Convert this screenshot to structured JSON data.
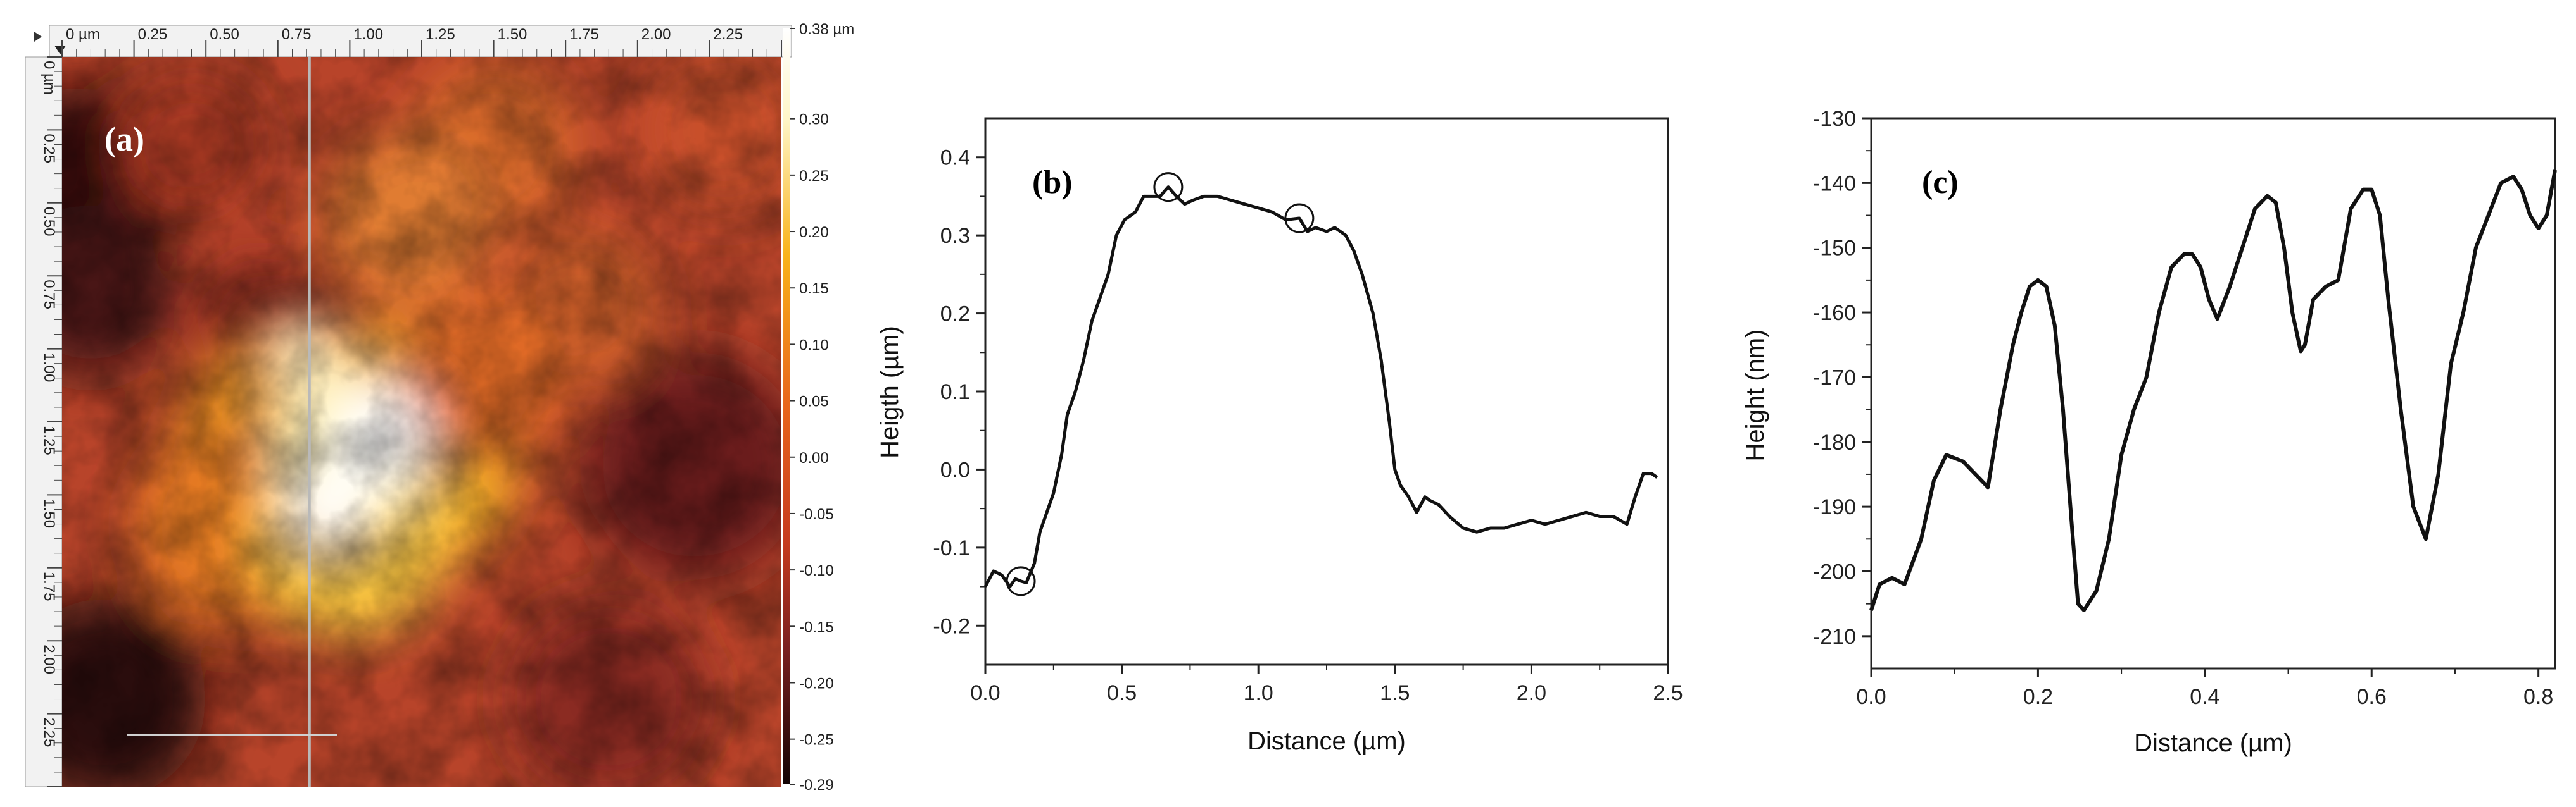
{
  "colors": {
    "curve": "#111111",
    "axis": "#222222",
    "ruler_bg": "#f2f2f2",
    "afm_low": "#1a0505",
    "afm_mid": "#d0401c",
    "afm_high": "#ffffff"
  },
  "chart_data": [
    {
      "type": "heatmap",
      "panel_label": "(a)",
      "x_tick_labels": [
        "0 µm",
        "0.25",
        "0.50",
        "0.75",
        "1.00",
        "1.25",
        "1.50",
        "1.75",
        "2.00",
        "2.25"
      ],
      "y_tick_labels": [
        "0 µm",
        "0.25",
        "0.50",
        "0.75",
        "1.00",
        "1.25",
        "1.50",
        "1.75",
        "2.00",
        "2.25"
      ],
      "colorbar_labels": [
        "0.38 µm",
        "0.30",
        "0.25",
        "0.20",
        "0.15",
        "0.10",
        "0.05",
        "0.00",
        "-0.05",
        "-0.10",
        "-0.15",
        "-0.20",
        "-0.25",
        "-0.29"
      ],
      "colorbar_range": [
        -0.29,
        0.38
      ],
      "colormap": "afm-hot",
      "profile_line_x": 0.86,
      "scale_bar_label": "",
      "features": [
        {
          "name": "bright-grain",
          "x": 1.05,
          "y": 1.4,
          "h": 0.38
        },
        {
          "name": "bright-grain-2",
          "x": 0.85,
          "y": 1.3,
          "h": 0.34
        },
        {
          "name": "grain-top",
          "x": 1.15,
          "y": 0.5,
          "h": 0.1
        },
        {
          "name": "grain-right",
          "x": 1.85,
          "y": 0.8,
          "h": 0.05
        }
      ]
    },
    {
      "type": "line",
      "panel_label": "(b)",
      "xlabel": "Distance (µm)",
      "ylabel": "Heigth (µm)",
      "xlim": [
        0,
        2.5
      ],
      "ylim": [
        -0.25,
        0.45
      ],
      "xticks": [
        0.0,
        0.5,
        1.0,
        1.5,
        2.0,
        2.5
      ],
      "xtick_labels": [
        "0.0",
        "0.5",
        "1.0",
        "1.5",
        "2.0",
        "2.5"
      ],
      "yticks": [
        -0.2,
        -0.1,
        0.0,
        0.1,
        0.2,
        0.3,
        0.4
      ],
      "ytick_labels": [
        "-0.2",
        "-0.1",
        "0.0",
        "0.1",
        "0.2",
        "0.3",
        "0.4"
      ],
      "markers": [
        {
          "x": 0.13,
          "y": -0.143
        },
        {
          "x": 0.67,
          "y": 0.362
        },
        {
          "x": 1.15,
          "y": 0.322
        }
      ],
      "x": [
        0.0,
        0.03,
        0.06,
        0.09,
        0.11,
        0.13,
        0.15,
        0.18,
        0.2,
        0.22,
        0.25,
        0.28,
        0.3,
        0.33,
        0.36,
        0.39,
        0.42,
        0.45,
        0.48,
        0.51,
        0.55,
        0.58,
        0.61,
        0.64,
        0.67,
        0.7,
        0.73,
        0.76,
        0.8,
        0.85,
        0.9,
        0.95,
        1.0,
        1.05,
        1.1,
        1.15,
        1.18,
        1.21,
        1.25,
        1.28,
        1.32,
        1.35,
        1.38,
        1.42,
        1.45,
        1.48,
        1.5,
        1.52,
        1.55,
        1.58,
        1.61,
        1.63,
        1.66,
        1.7,
        1.75,
        1.8,
        1.85,
        1.9,
        1.95,
        2.0,
        2.05,
        2.1,
        2.15,
        2.2,
        2.25,
        2.3,
        2.35,
        2.38,
        2.41,
        2.44,
        2.46
      ],
      "y": [
        -0.15,
        -0.13,
        -0.135,
        -0.15,
        -0.14,
        -0.143,
        -0.145,
        -0.12,
        -0.08,
        -0.06,
        -0.03,
        0.02,
        0.07,
        0.1,
        0.14,
        0.19,
        0.22,
        0.25,
        0.3,
        0.32,
        0.33,
        0.35,
        0.35,
        0.35,
        0.362,
        0.35,
        0.34,
        0.345,
        0.35,
        0.35,
        0.345,
        0.34,
        0.335,
        0.33,
        0.32,
        0.322,
        0.305,
        0.31,
        0.305,
        0.31,
        0.3,
        0.28,
        0.25,
        0.2,
        0.14,
        0.06,
        0.0,
        -0.02,
        -0.035,
        -0.055,
        -0.035,
        -0.04,
        -0.045,
        -0.06,
        -0.075,
        -0.08,
        -0.075,
        -0.075,
        -0.07,
        -0.065,
        -0.07,
        -0.065,
        -0.06,
        -0.055,
        -0.06,
        -0.06,
        -0.07,
        -0.035,
        -0.005,
        -0.005,
        -0.01
      ]
    },
    {
      "type": "line",
      "panel_label": "(c)",
      "xlabel": "Distance (µm)",
      "ylabel": "Height (nm)",
      "xlim": [
        0,
        0.82
      ],
      "ylim": [
        -215,
        -130
      ],
      "xticks": [
        0.0,
        0.2,
        0.4,
        0.6,
        0.8
      ],
      "xtick_labels": [
        "0.0",
        "0.2",
        "0.4",
        "0.6",
        "0.8"
      ],
      "yticks": [
        -210,
        -200,
        -190,
        -180,
        -170,
        -160,
        -150,
        -140,
        -130
      ],
      "ytick_labels": [
        "-210",
        "-200",
        "-190",
        "-180",
        "-170",
        "-160",
        "-150",
        "-140",
        "-130"
      ],
      "x": [
        0.0,
        0.01,
        0.025,
        0.04,
        0.06,
        0.075,
        0.09,
        0.11,
        0.125,
        0.14,
        0.155,
        0.17,
        0.18,
        0.19,
        0.2,
        0.21,
        0.22,
        0.23,
        0.24,
        0.248,
        0.255,
        0.27,
        0.285,
        0.3,
        0.315,
        0.33,
        0.345,
        0.36,
        0.375,
        0.385,
        0.395,
        0.405,
        0.415,
        0.43,
        0.445,
        0.46,
        0.475,
        0.485,
        0.495,
        0.505,
        0.515,
        0.52,
        0.53,
        0.545,
        0.56,
        0.575,
        0.59,
        0.6,
        0.61,
        0.62,
        0.635,
        0.65,
        0.665,
        0.68,
        0.695,
        0.71,
        0.725,
        0.74,
        0.755,
        0.77,
        0.78,
        0.79,
        0.8,
        0.81,
        0.82
      ],
      "y": [
        -206,
        -202,
        -201,
        -202,
        -195,
        -186,
        -182,
        -183,
        -185,
        -187,
        -175,
        -165,
        -160,
        -156,
        -155,
        -156,
        -162,
        -175,
        -192,
        -205,
        -206,
        -203,
        -195,
        -182,
        -175,
        -170,
        -160,
        -153,
        -151,
        -151,
        -153,
        -158,
        -161,
        -156,
        -150,
        -144,
        -142,
        -143,
        -150,
        -160,
        -166,
        -165,
        -158,
        -156,
        -155,
        -144,
        -141,
        -141,
        -145,
        -158,
        -175,
        -190,
        -195,
        -185,
        -168,
        -160,
        -150,
        -145,
        -140,
        -139,
        -141,
        -145,
        -147,
        -145,
        -138
      ]
    }
  ]
}
